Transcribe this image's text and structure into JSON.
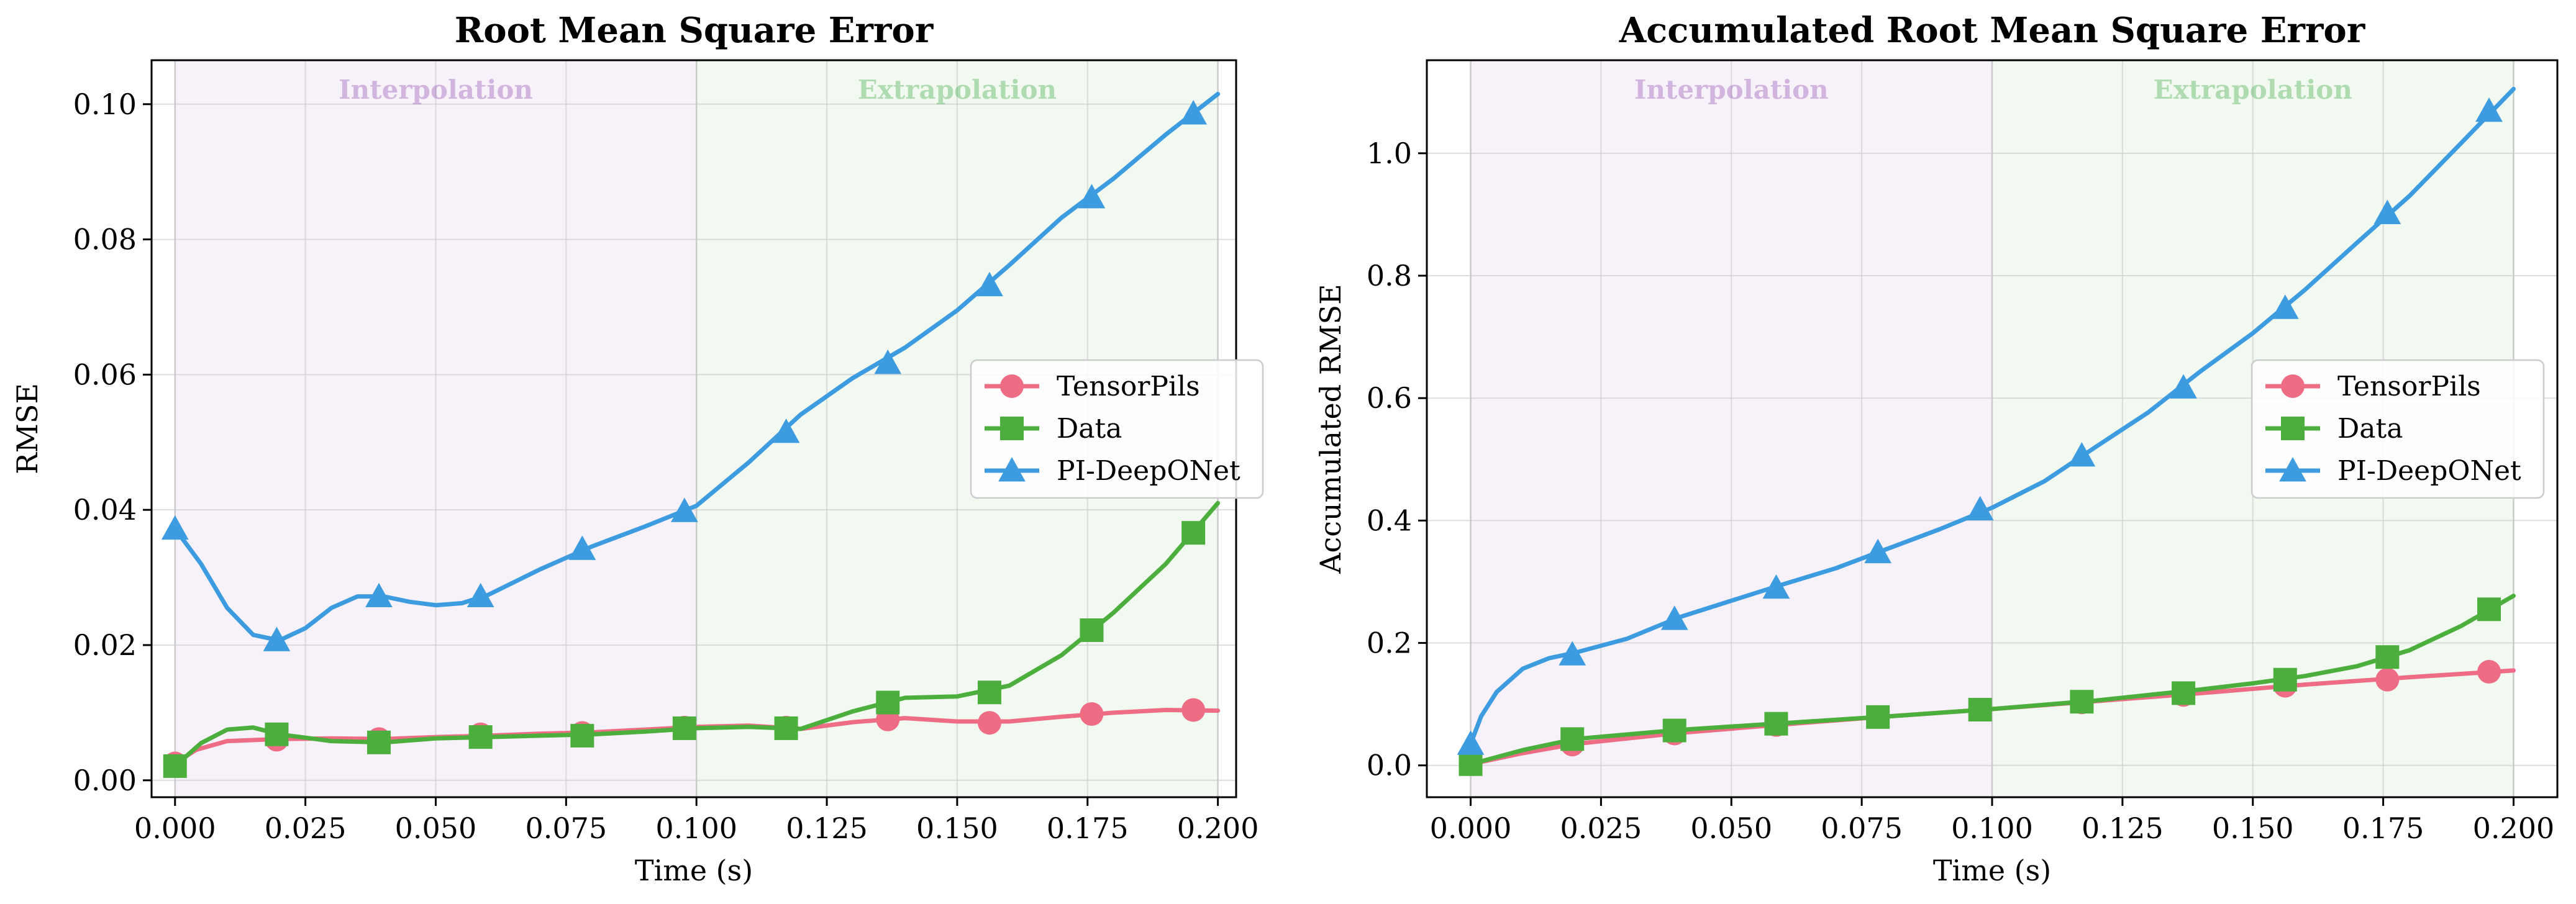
{
  "chart_data": [
    {
      "type": "line",
      "title": "Root Mean Square Error",
      "xlabel": "Time (s)",
      "ylabel": "RMSE",
      "xlim": [
        -0.0045,
        0.2035
      ],
      "ylim": [
        -0.0025,
        0.1065
      ],
      "xticks": [
        "0.000",
        "0.025",
        "0.050",
        "0.075",
        "0.100",
        "0.125",
        "0.150",
        "0.175",
        "0.200"
      ],
      "yticks": [
        "0.00",
        "0.02",
        "0.04",
        "0.06",
        "0.08",
        "0.10"
      ],
      "grid": true,
      "legend_position": "center-right",
      "regions": [
        {
          "label": "Interpolation",
          "x_start": 0.0,
          "x_end": 0.1,
          "color": "#9b59b6"
        },
        {
          "label": "Extrapolation",
          "x_start": 0.1,
          "x_end": 0.2,
          "color": "#4caf50"
        }
      ],
      "series": [
        {
          "name": "TensorPils",
          "color": "#ee6d85",
          "marker": "circle",
          "x": [
            0.0,
            0.0195,
            0.0391,
            0.0586,
            0.0781,
            0.0977,
            0.1172,
            0.1367,
            0.1562,
            0.1758,
            0.1953
          ],
          "y": [
            0.0025,
            0.006,
            0.0061,
            0.0068,
            0.007,
            0.0078,
            0.0078,
            0.009,
            0.0085,
            0.0098,
            0.0104
          ],
          "curve_x": [
            0.0,
            0.004,
            0.01,
            0.02,
            0.03,
            0.04,
            0.05,
            0.06,
            0.07,
            0.08,
            0.09,
            0.1,
            0.11,
            0.12,
            0.13,
            0.14,
            0.15,
            0.16,
            0.17,
            0.18,
            0.19,
            0.2
          ],
          "curve_y": [
            0.0025,
            0.0045,
            0.0058,
            0.0061,
            0.0062,
            0.0061,
            0.0064,
            0.0066,
            0.0069,
            0.0071,
            0.0075,
            0.0079,
            0.0081,
            0.0076,
            0.0086,
            0.0092,
            0.0087,
            0.0087,
            0.0094,
            0.01,
            0.0104,
            0.0103
          ]
        },
        {
          "name": "Data",
          "color": "#4cae3c",
          "marker": "square",
          "x": [
            0.0,
            0.0195,
            0.0391,
            0.0586,
            0.0781,
            0.0977,
            0.1172,
            0.1367,
            0.1562,
            0.1758,
            0.1953
          ],
          "y": [
            0.0021,
            0.0068,
            0.0056,
            0.0064,
            0.0066,
            0.0077,
            0.0077,
            0.0115,
            0.013,
            0.0222,
            0.0366
          ],
          "curve_x": [
            0.0,
            0.005,
            0.01,
            0.015,
            0.02,
            0.03,
            0.04,
            0.05,
            0.06,
            0.07,
            0.08,
            0.09,
            0.1,
            0.11,
            0.12,
            0.13,
            0.14,
            0.15,
            0.16,
            0.17,
            0.18,
            0.19,
            0.2
          ],
          "curve_y": [
            0.0021,
            0.0055,
            0.0075,
            0.0078,
            0.0068,
            0.0058,
            0.0056,
            0.0062,
            0.0064,
            0.0066,
            0.0068,
            0.0072,
            0.0077,
            0.0079,
            0.0076,
            0.0102,
            0.0122,
            0.0124,
            0.014,
            0.0185,
            0.0248,
            0.032,
            0.041
          ]
        },
        {
          "name": "PI-DeepONet",
          "color": "#3d9be0",
          "marker": "triangle",
          "x": [
            0.0,
            0.0195,
            0.0391,
            0.0586,
            0.0781,
            0.0977,
            0.1172,
            0.1367,
            0.1562,
            0.1758,
            0.1953
          ],
          "y": [
            0.0372,
            0.0207,
            0.0272,
            0.0272,
            0.0342,
            0.0398,
            0.0515,
            0.0617,
            0.0732,
            0.0862,
            0.0986
          ],
          "curve_x": [
            0.0,
            0.005,
            0.01,
            0.015,
            0.02,
            0.025,
            0.03,
            0.035,
            0.04,
            0.045,
            0.05,
            0.055,
            0.06,
            0.07,
            0.08,
            0.09,
            0.1,
            0.11,
            0.12,
            0.13,
            0.14,
            0.15,
            0.16,
            0.17,
            0.18,
            0.19,
            0.2
          ],
          "curve_y": [
            0.0372,
            0.032,
            0.0255,
            0.0215,
            0.0207,
            0.0225,
            0.0255,
            0.0272,
            0.0272,
            0.0264,
            0.0259,
            0.0262,
            0.0274,
            0.0312,
            0.0346,
            0.0375,
            0.0406,
            0.047,
            0.0541,
            0.0595,
            0.064,
            0.0695,
            0.0762,
            0.0832,
            0.089,
            0.0955,
            0.1015
          ]
        }
      ]
    },
    {
      "type": "line",
      "title": "Accumulated Root Mean Square Error",
      "xlabel": "Time (s)",
      "ylabel": "Accumulated RMSE",
      "xlim": [
        -0.0084,
        0.2084
      ],
      "ylim": [
        -0.052,
        1.152
      ],
      "xticks": [
        "0.000",
        "0.025",
        "0.050",
        "0.075",
        "0.100",
        "0.125",
        "0.150",
        "0.175",
        "0.200"
      ],
      "yticks": [
        "0.0",
        "0.2",
        "0.4",
        "0.6",
        "0.8",
        "1.0"
      ],
      "grid": true,
      "legend_position": "center-right",
      "regions": [
        {
          "label": "Interpolation",
          "x_start": 0.0,
          "x_end": 0.1,
          "color": "#9b59b6"
        },
        {
          "label": "Extrapolation",
          "x_start": 0.1,
          "x_end": 0.2,
          "color": "#4caf50"
        }
      ],
      "series": [
        {
          "name": "TensorPils",
          "color": "#ee6d85",
          "marker": "circle",
          "x": [
            0.0,
            0.0195,
            0.0391,
            0.0586,
            0.0781,
            0.0977,
            0.1172,
            0.1367,
            0.1562,
            0.1758,
            0.1953
          ],
          "y": [
            0.002,
            0.034,
            0.052,
            0.066,
            0.079,
            0.091,
            0.103,
            0.115,
            0.13,
            0.14,
            0.153
          ],
          "curve_x": [
            0.0,
            0.01,
            0.02,
            0.04,
            0.06,
            0.08,
            0.1,
            0.12,
            0.14,
            0.16,
            0.18,
            0.2
          ],
          "curve_y": [
            0.002,
            0.02,
            0.035,
            0.053,
            0.067,
            0.08,
            0.092,
            0.105,
            0.118,
            0.132,
            0.144,
            0.155
          ]
        },
        {
          "name": "Data",
          "color": "#4cae3c",
          "marker": "square",
          "x": [
            0.0,
            0.0195,
            0.0391,
            0.0586,
            0.0781,
            0.0977,
            0.1172,
            0.1367,
            0.1562,
            0.1758,
            0.1953
          ],
          "y": [
            0.002,
            0.043,
            0.057,
            0.068,
            0.079,
            0.091,
            0.104,
            0.118,
            0.14,
            0.177,
            0.255
          ],
          "curve_x": [
            0.0,
            0.01,
            0.02,
            0.04,
            0.06,
            0.08,
            0.1,
            0.12,
            0.14,
            0.15,
            0.16,
            0.17,
            0.18,
            0.19,
            0.2
          ],
          "curve_y": [
            0.002,
            0.025,
            0.043,
            0.058,
            0.069,
            0.08,
            0.092,
            0.106,
            0.124,
            0.134,
            0.146,
            0.162,
            0.188,
            0.228,
            0.277
          ]
        },
        {
          "name": "PI-DeepONet",
          "color": "#3d9be0",
          "marker": "triangle",
          "x": [
            0.0,
            0.0195,
            0.0391,
            0.0586,
            0.0781,
            0.0977,
            0.1172,
            0.1367,
            0.1562,
            0.1758,
            0.1953
          ],
          "y": [
            0.035,
            0.181,
            0.239,
            0.29,
            0.348,
            0.418,
            0.506,
            0.617,
            0.747,
            0.902,
            1.069
          ],
          "curve_x": [
            0.0,
            0.002,
            0.005,
            0.01,
            0.015,
            0.02,
            0.03,
            0.04,
            0.05,
            0.06,
            0.07,
            0.08,
            0.09,
            0.1,
            0.11,
            0.12,
            0.13,
            0.14,
            0.15,
            0.16,
            0.17,
            0.18,
            0.19,
            0.2
          ],
          "curve_y": [
            0.035,
            0.08,
            0.12,
            0.158,
            0.175,
            0.184,
            0.207,
            0.242,
            0.269,
            0.296,
            0.322,
            0.354,
            0.386,
            0.421,
            0.464,
            0.521,
            0.577,
            0.644,
            0.706,
            0.777,
            0.854,
            0.93,
            1.017,
            1.105
          ]
        }
      ]
    }
  ]
}
